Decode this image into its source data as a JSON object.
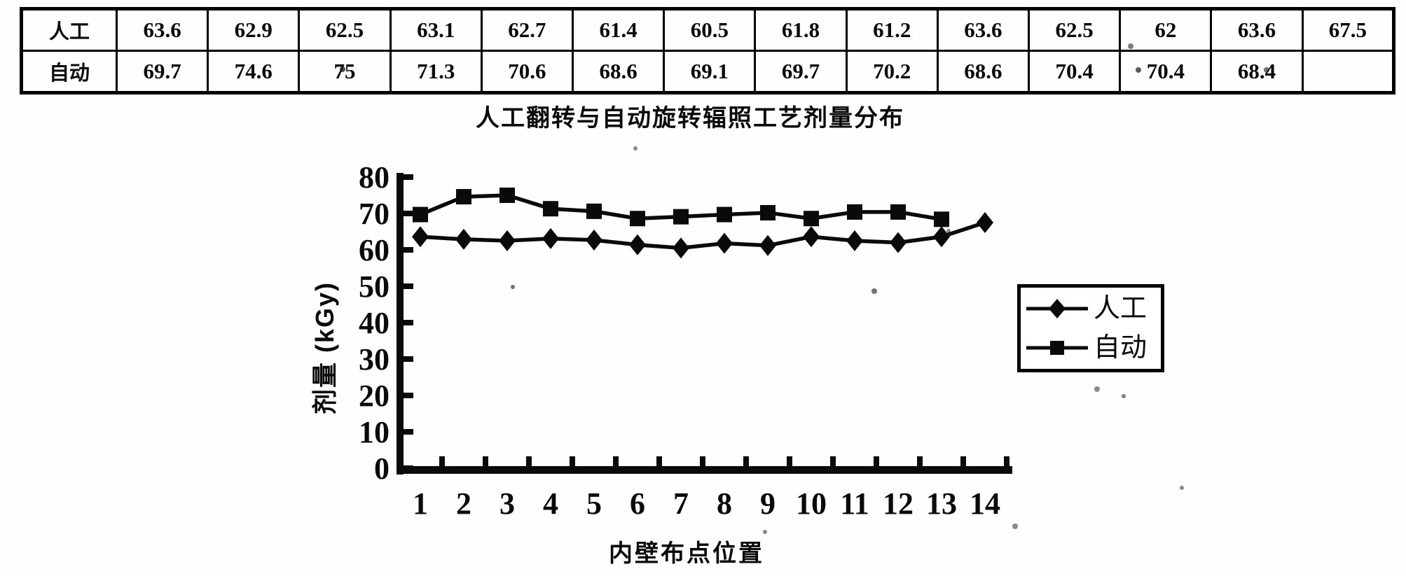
{
  "table": {
    "rows": [
      {
        "label": "人工",
        "values": [
          "63.6",
          "62.9",
          "62.5",
          "63.1",
          "62.7",
          "61.4",
          "60.5",
          "61.8",
          "61.2",
          "63.6",
          "62.5",
          "62",
          "63.6",
          "67.5"
        ]
      },
      {
        "label": "自动",
        "values": [
          "69.7",
          "74.6",
          "75",
          "71.3",
          "70.6",
          "68.6",
          "69.1",
          "69.7",
          "70.2",
          "68.6",
          "70.4",
          "70.4",
          "68.4",
          ""
        ]
      }
    ]
  },
  "chart_data": {
    "type": "line",
    "title": "人工翻转与自动旋转辐照工艺剂量分布",
    "xlabel": "内壁布点位置",
    "ylabel": "剂量 (kGy)",
    "x": [
      1,
      2,
      3,
      4,
      5,
      6,
      7,
      8,
      9,
      10,
      11,
      12,
      13,
      14
    ],
    "series": [
      {
        "name": "人工",
        "marker": "diamond",
        "values": [
          63.6,
          62.9,
          62.5,
          63.1,
          62.7,
          61.4,
          60.5,
          61.8,
          61.2,
          63.6,
          62.5,
          62,
          63.6,
          67.5
        ]
      },
      {
        "name": "自动",
        "marker": "square",
        "values": [
          69.7,
          74.6,
          75,
          71.3,
          70.6,
          68.6,
          69.1,
          69.7,
          70.2,
          68.6,
          70.4,
          70.4,
          68.4,
          null
        ]
      }
    ],
    "ylim": [
      0,
      80
    ],
    "yticks": [
      0,
      10,
      20,
      30,
      40,
      50,
      60,
      70,
      80
    ],
    "legend_position": "right",
    "grid": false,
    "line_color": "#0a0a0a"
  }
}
